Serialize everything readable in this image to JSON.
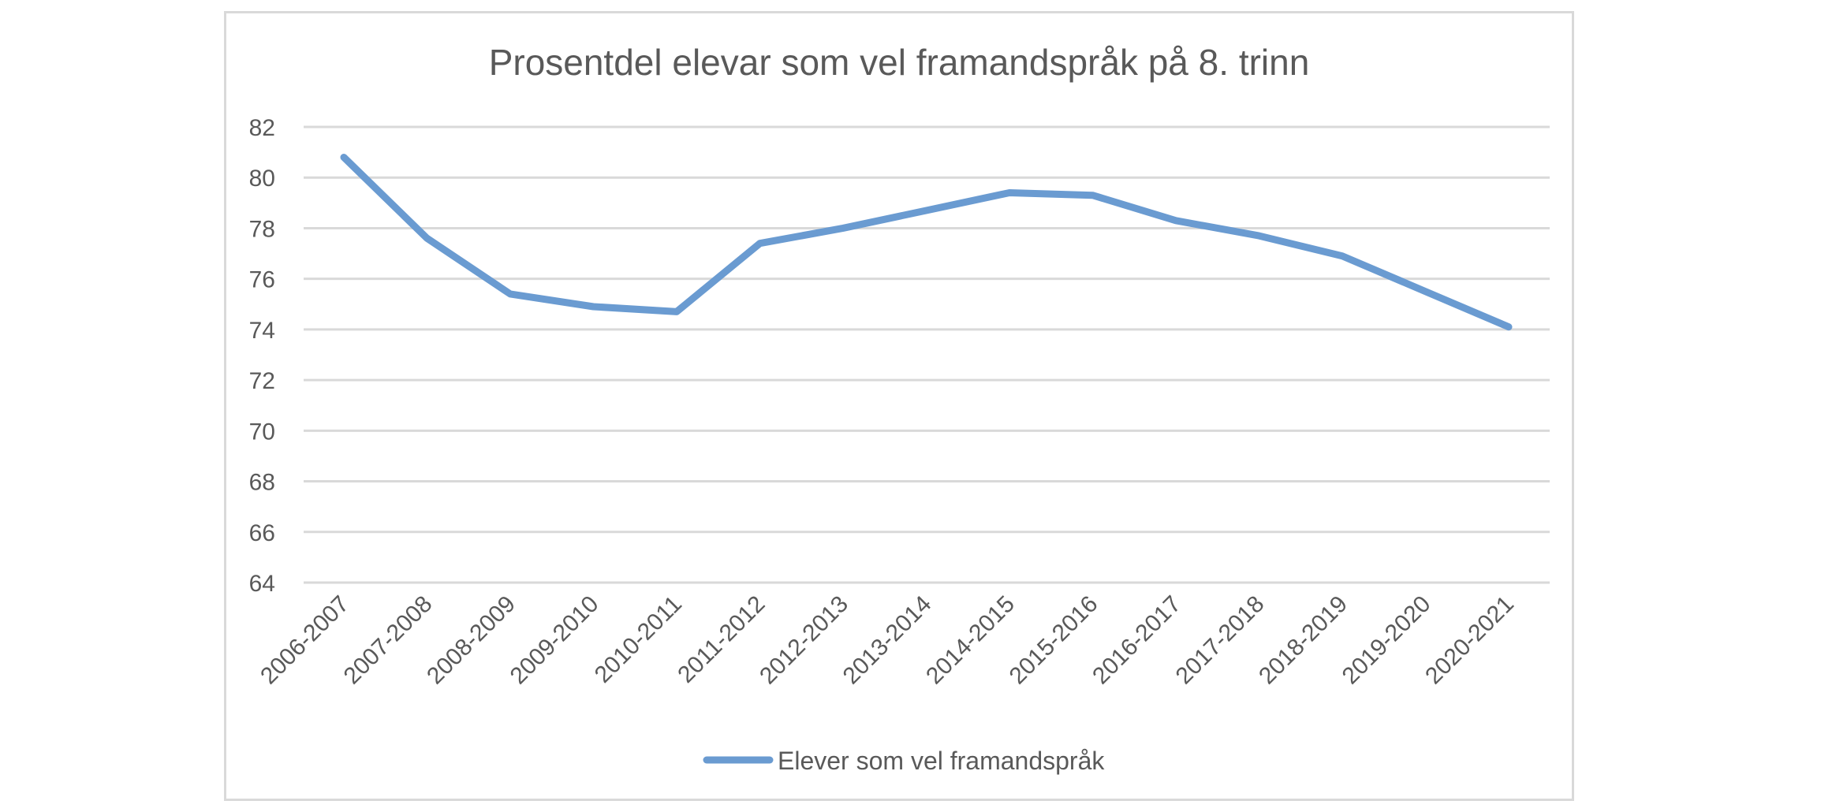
{
  "chart_data": {
    "type": "line",
    "title": "Prosentdel elevar som vel framandspråk på 8. trinn",
    "xlabel": "",
    "ylabel": "",
    "categories": [
      "2006-2007",
      "2007-2008",
      "2008-2009",
      "2009-2010",
      "2010-2011",
      "2011-2012",
      "2012-2013",
      "2013-2014",
      "2014-2015",
      "2015-2016",
      "2016-2017",
      "2017-2018",
      "2018-2019",
      "2019-2020",
      "2020-2021"
    ],
    "series": [
      {
        "name": "Elever som vel framandspråk",
        "values": [
          80.8,
          77.6,
          75.4,
          74.9,
          74.7,
          77.4,
          78.0,
          78.7,
          79.4,
          79.3,
          78.3,
          77.7,
          76.9,
          75.5,
          74.1
        ],
        "color": "#6a9bd1"
      }
    ],
    "ylim": [
      64,
      82
    ],
    "yticks": [
      82,
      80,
      78,
      76,
      74,
      72,
      70,
      68,
      66,
      64
    ],
    "grid": true,
    "legend_position": "bottom"
  }
}
